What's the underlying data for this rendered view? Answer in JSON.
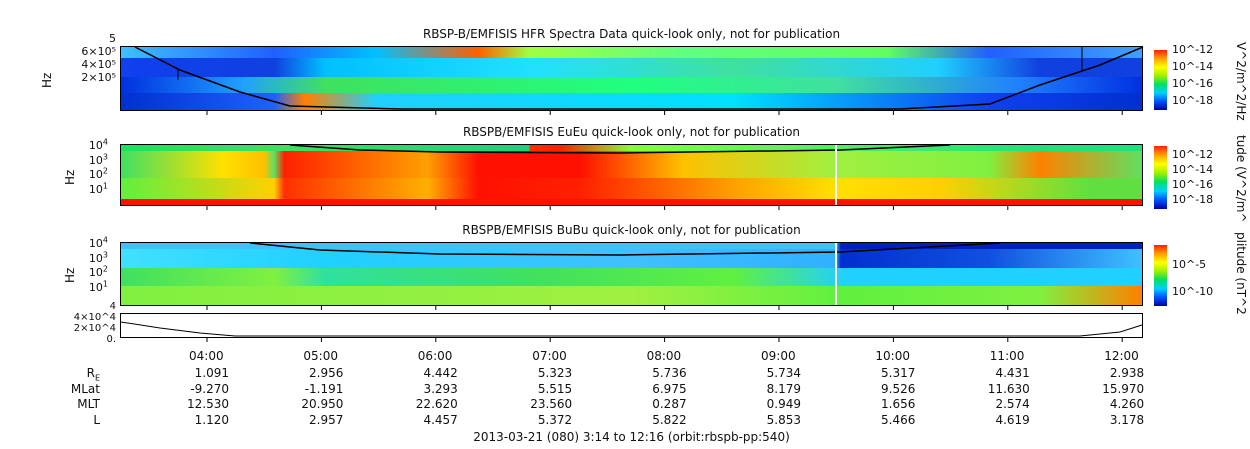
{
  "chart_data": [
    {
      "type": "heatmap",
      "title": "RBSP-B/EMFISIS  HFR Spectra Data quick-look only, not for publication",
      "ylabel": "Hz",
      "yticks": [
        "6×10⁵",
        "4×10⁵",
        "2×10⁵"
      ],
      "y_top": "5",
      "colorbar_label": "V^2/m^2/Hz",
      "colorbar_ticks": [
        "10^-12",
        "10^-14",
        "10^-16",
        "10^-18"
      ]
    },
    {
      "type": "heatmap",
      "title": "RBSPB/EMFISIS  EuEu quick-look only, not for publication",
      "ylabel": "Hz",
      "yticks": [
        "10^4",
        "10^3",
        "10^2",
        "10^1"
      ],
      "colorbar_label": "tude (V^2/m^",
      "colorbar_ticks": [
        "10^-12",
        "10^-14",
        "10^-16",
        "10^-18"
      ]
    },
    {
      "type": "heatmap",
      "title": "RBSPB/EMFISIS  BuBu quick-look only, not for publication",
      "ylabel": "Hz",
      "yticks": [
        "10^4",
        "10^3",
        "10^2",
        "10^1"
      ],
      "colorbar_label": "plitude (nT^2",
      "colorbar_ticks": [
        "10^-5",
        "10^-10"
      ]
    },
    {
      "type": "line",
      "yticks": [
        "4×10^4",
        "2×10^4",
        "0."
      ],
      "y_top": "4"
    }
  ],
  "time_ticks": [
    "04:00",
    "05:00",
    "06:00",
    "07:00",
    "08:00",
    "09:00",
    "10:00",
    "11:00",
    "12:00"
  ],
  "ephemeris": [
    {
      "label": "R",
      "sub": "E",
      "values": [
        "1.091",
        "2.956",
        "4.442",
        "5.323",
        "5.736",
        "5.734",
        "5.317",
        "4.431",
        "2.938"
      ]
    },
    {
      "label": "MLat",
      "values": [
        "-9.270",
        "-1.191",
        "3.293",
        "5.515",
        "6.975",
        "8.179",
        "9.526",
        "11.630",
        "15.970"
      ]
    },
    {
      "label": "MLT",
      "values": [
        "12.530",
        "20.950",
        "22.620",
        "23.560",
        "0.287",
        "0.949",
        "1.656",
        "2.574",
        "4.260"
      ]
    },
    {
      "label": "L",
      "values": [
        "1.120",
        "2.957",
        "4.457",
        "5.372",
        "5.822",
        "5.853",
        "5.466",
        "4.619",
        "3.178"
      ]
    }
  ],
  "footer": "2013-03-21 (080) 3:14 to 12:16 (orbit:rbspb-pp:540)"
}
